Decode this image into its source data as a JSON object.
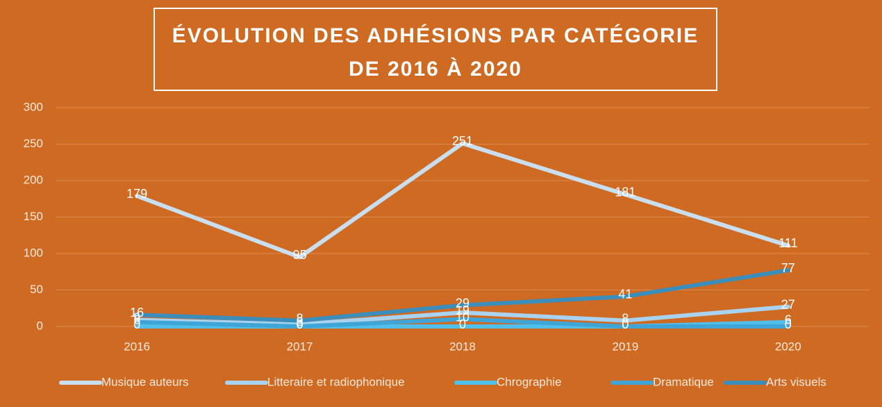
{
  "chart_data": {
    "type": "line",
    "title": [
      "ÉVOLUTION DES ADHÉSIONS PAR CATÉGORIE",
      "DE 2016 À 2020"
    ],
    "categories": [
      "2016",
      "2017",
      "2018",
      "2019",
      "2020"
    ],
    "series": [
      {
        "name": "Musique auteurs",
        "color": "#c9dff0",
        "values": [
          179,
          95,
          251,
          181,
          111
        ]
      },
      {
        "name": "Litteraire et radiophonique",
        "color": "#a8d3f0",
        "values": [
          9,
          3,
          19,
          8,
          27
        ]
      },
      {
        "name": "Chrographie",
        "color": "#4fc0ec",
        "values": [
          0,
          0,
          0,
          0,
          6
        ]
      },
      {
        "name": "Dramatique",
        "color": "#3fa5d6",
        "values": [
          6,
          0,
          10,
          0,
          0
        ]
      },
      {
        "name": "Arts visuels",
        "color": "#3b8eba",
        "values": [
          16,
          8,
          29,
          41,
          77
        ]
      }
    ],
    "ylim": [
      0,
      300
    ],
    "yticks": [
      0,
      50,
      100,
      150,
      200,
      250,
      300
    ],
    "grid": true,
    "legend": "bottom"
  }
}
